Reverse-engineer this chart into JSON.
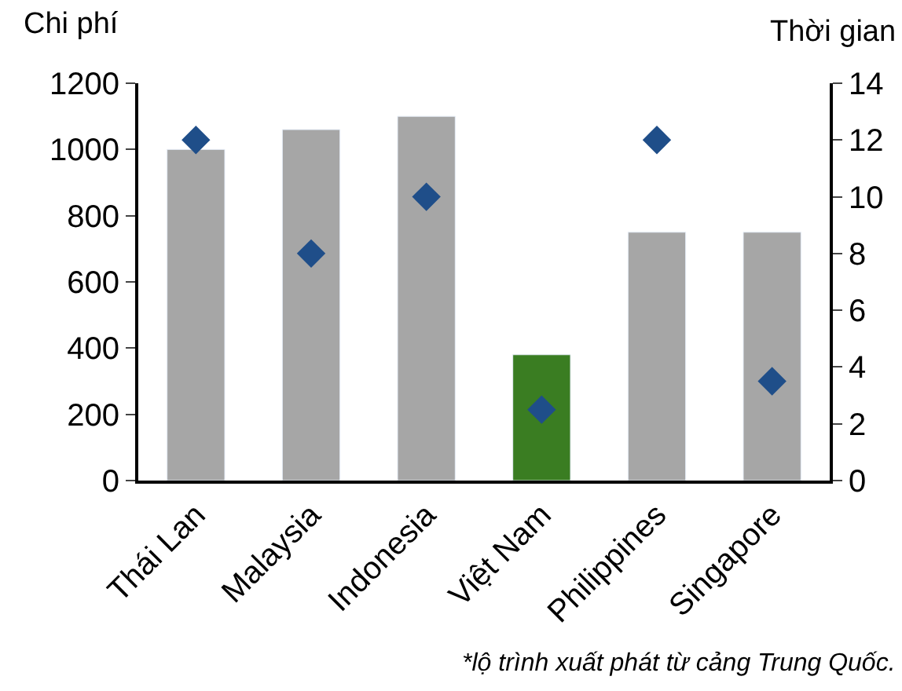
{
  "chart_data": {
    "type": "bar",
    "ylabel": "Chi phí",
    "y2label": "Thời gian",
    "categories": [
      "Thái Lan",
      "Malaysia",
      "Indonesia",
      "Việt Nam",
      "Philippines",
      "Singapore"
    ],
    "series": [
      {
        "colors": [
          "#a6a6a6",
          "#a6a6a6",
          "#a6a6a6",
          "#3a7d22",
          "#a6a6a6",
          "#a6a6a6"
        ],
        "values": [
          1000,
          1060,
          1100,
          380,
          750,
          750
        ]
      },
      {
        "type": "scatter",
        "axis": "y2",
        "color": "#1f4e89",
        "marker": "diamond",
        "values": [
          12,
          8,
          10,
          2.5,
          12,
          3.5
        ]
      }
    ],
    "ylim": [
      0,
      1200
    ],
    "yticks": [
      0,
      200,
      400,
      600,
      800,
      1000,
      1200
    ],
    "y2lim": [
      0,
      14
    ],
    "y2ticks": [
      0,
      2,
      4,
      6,
      8,
      10,
      12,
      14
    ],
    "annotations": [
      "*lộ trình xuất phát từ cảng Trung Quốc."
    ]
  }
}
